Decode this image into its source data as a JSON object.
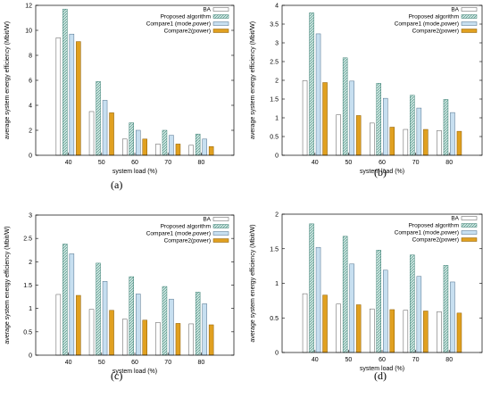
{
  "figure": {
    "series_names": [
      "BA",
      "Proposed algorithm",
      "Compare1 (mode,power)",
      "Compare2(power)"
    ],
    "xlabel": "system load (%)",
    "ylabel": "average system energy efficiency (Mbit/W)",
    "colors": {
      "ba_fill": "#ffffff",
      "ba_stroke": "#555555",
      "proposed_fill": "#cfe9e3",
      "proposed_stroke": "#3b7f73",
      "compare1_fill": "#c7dff0",
      "compare1_stroke": "#4d6f8a",
      "compare2_fill": "#e0a020",
      "compare2_stroke": "#8a5a00"
    }
  },
  "chart_data": [
    {
      "type": "bar",
      "panel": "(a)",
      "categories": [
        "40",
        "50",
        "60",
        "70",
        "80"
      ],
      "ylim": [
        0,
        12
      ],
      "yticks": [
        "0",
        "2",
        "4",
        "6",
        "8",
        "10",
        "12"
      ],
      "xlabel": "system load (%)",
      "ylabel": "average system energy efficiency (Mbit/W)",
      "legend_position": "top-right",
      "series": [
        {
          "name": "BA",
          "values": [
            9.4,
            3.5,
            1.3,
            0.9,
            0.8
          ]
        },
        {
          "name": "Proposed algorithm",
          "values": [
            11.7,
            5.9,
            2.6,
            2.0,
            1.7
          ]
        },
        {
          "name": "Compare1 (mode,power)",
          "values": [
            9.7,
            4.4,
            2.0,
            1.6,
            1.3
          ]
        },
        {
          "name": "Compare2(power)",
          "values": [
            9.1,
            3.4,
            1.3,
            0.9,
            0.7
          ]
        }
      ]
    },
    {
      "type": "bar",
      "panel": "(b)",
      "categories": [
        "40",
        "50",
        "60",
        "70",
        "80"
      ],
      "ylim": [
        0,
        4
      ],
      "yticks": [
        "0",
        "0.5",
        "1",
        "1.5",
        "2",
        "2.5",
        "3",
        "3.5",
        "4"
      ],
      "xlabel": "system load (%)",
      "ylabel": "average system energy efficiency (Mbit/W)",
      "legend_position": "top-right",
      "series": [
        {
          "name": "BA",
          "values": [
            1.99,
            1.08,
            0.86,
            0.69,
            0.66
          ]
        },
        {
          "name": "Proposed algorithm",
          "values": [
            3.8,
            2.6,
            1.92,
            1.6,
            1.49
          ]
        },
        {
          "name": "Compare1 (mode,power)",
          "values": [
            3.24,
            1.98,
            1.52,
            1.26,
            1.14
          ]
        },
        {
          "name": "Compare2(power)",
          "values": [
            1.94,
            1.06,
            0.75,
            0.69,
            0.64
          ]
        }
      ]
    },
    {
      "type": "bar",
      "panel": "(c)",
      "categories": [
        "40",
        "50",
        "60",
        "70",
        "80"
      ],
      "ylim": [
        0,
        3
      ],
      "yticks": [
        "0",
        "0.5",
        "1",
        "1.5",
        "2",
        "2.5",
        "3"
      ],
      "xlabel": "system load (%)",
      "ylabel": "average system energy efficiency (Mbit/W)",
      "legend_position": "top-right",
      "series": [
        {
          "name": "BA",
          "values": [
            1.3,
            0.98,
            0.77,
            0.7,
            0.67
          ]
        },
        {
          "name": "Proposed algorithm",
          "values": [
            2.38,
            1.97,
            1.68,
            1.47,
            1.35
          ]
        },
        {
          "name": "Compare1 (mode,power)",
          "values": [
            2.17,
            1.58,
            1.31,
            1.2,
            1.1
          ]
        },
        {
          "name": "Compare2(power)",
          "values": [
            1.28,
            0.96,
            0.75,
            0.68,
            0.65
          ]
        }
      ]
    },
    {
      "type": "bar",
      "panel": "(d)",
      "categories": [
        "40",
        "50",
        "60",
        "70",
        "80"
      ],
      "ylim": [
        0,
        2
      ],
      "yticks": [
        "0",
        "0.5",
        "1",
        "1.5",
        "2"
      ],
      "xlabel": "system load (%)",
      "ylabel": "average system energy efficiency (Mbit/W)",
      "legend_position": "top-right",
      "series": [
        {
          "name": "BA",
          "values": [
            0.85,
            0.7,
            0.63,
            0.61,
            0.59
          ]
        },
        {
          "name": "Proposed algorithm",
          "values": [
            1.86,
            1.68,
            1.48,
            1.41,
            1.26
          ]
        },
        {
          "name": "Compare1 (mode,power)",
          "values": [
            1.52,
            1.28,
            1.19,
            1.1,
            1.02
          ]
        },
        {
          "name": "Compare2(power)",
          "values": [
            0.83,
            0.69,
            0.62,
            0.6,
            0.57
          ]
        }
      ]
    }
  ]
}
